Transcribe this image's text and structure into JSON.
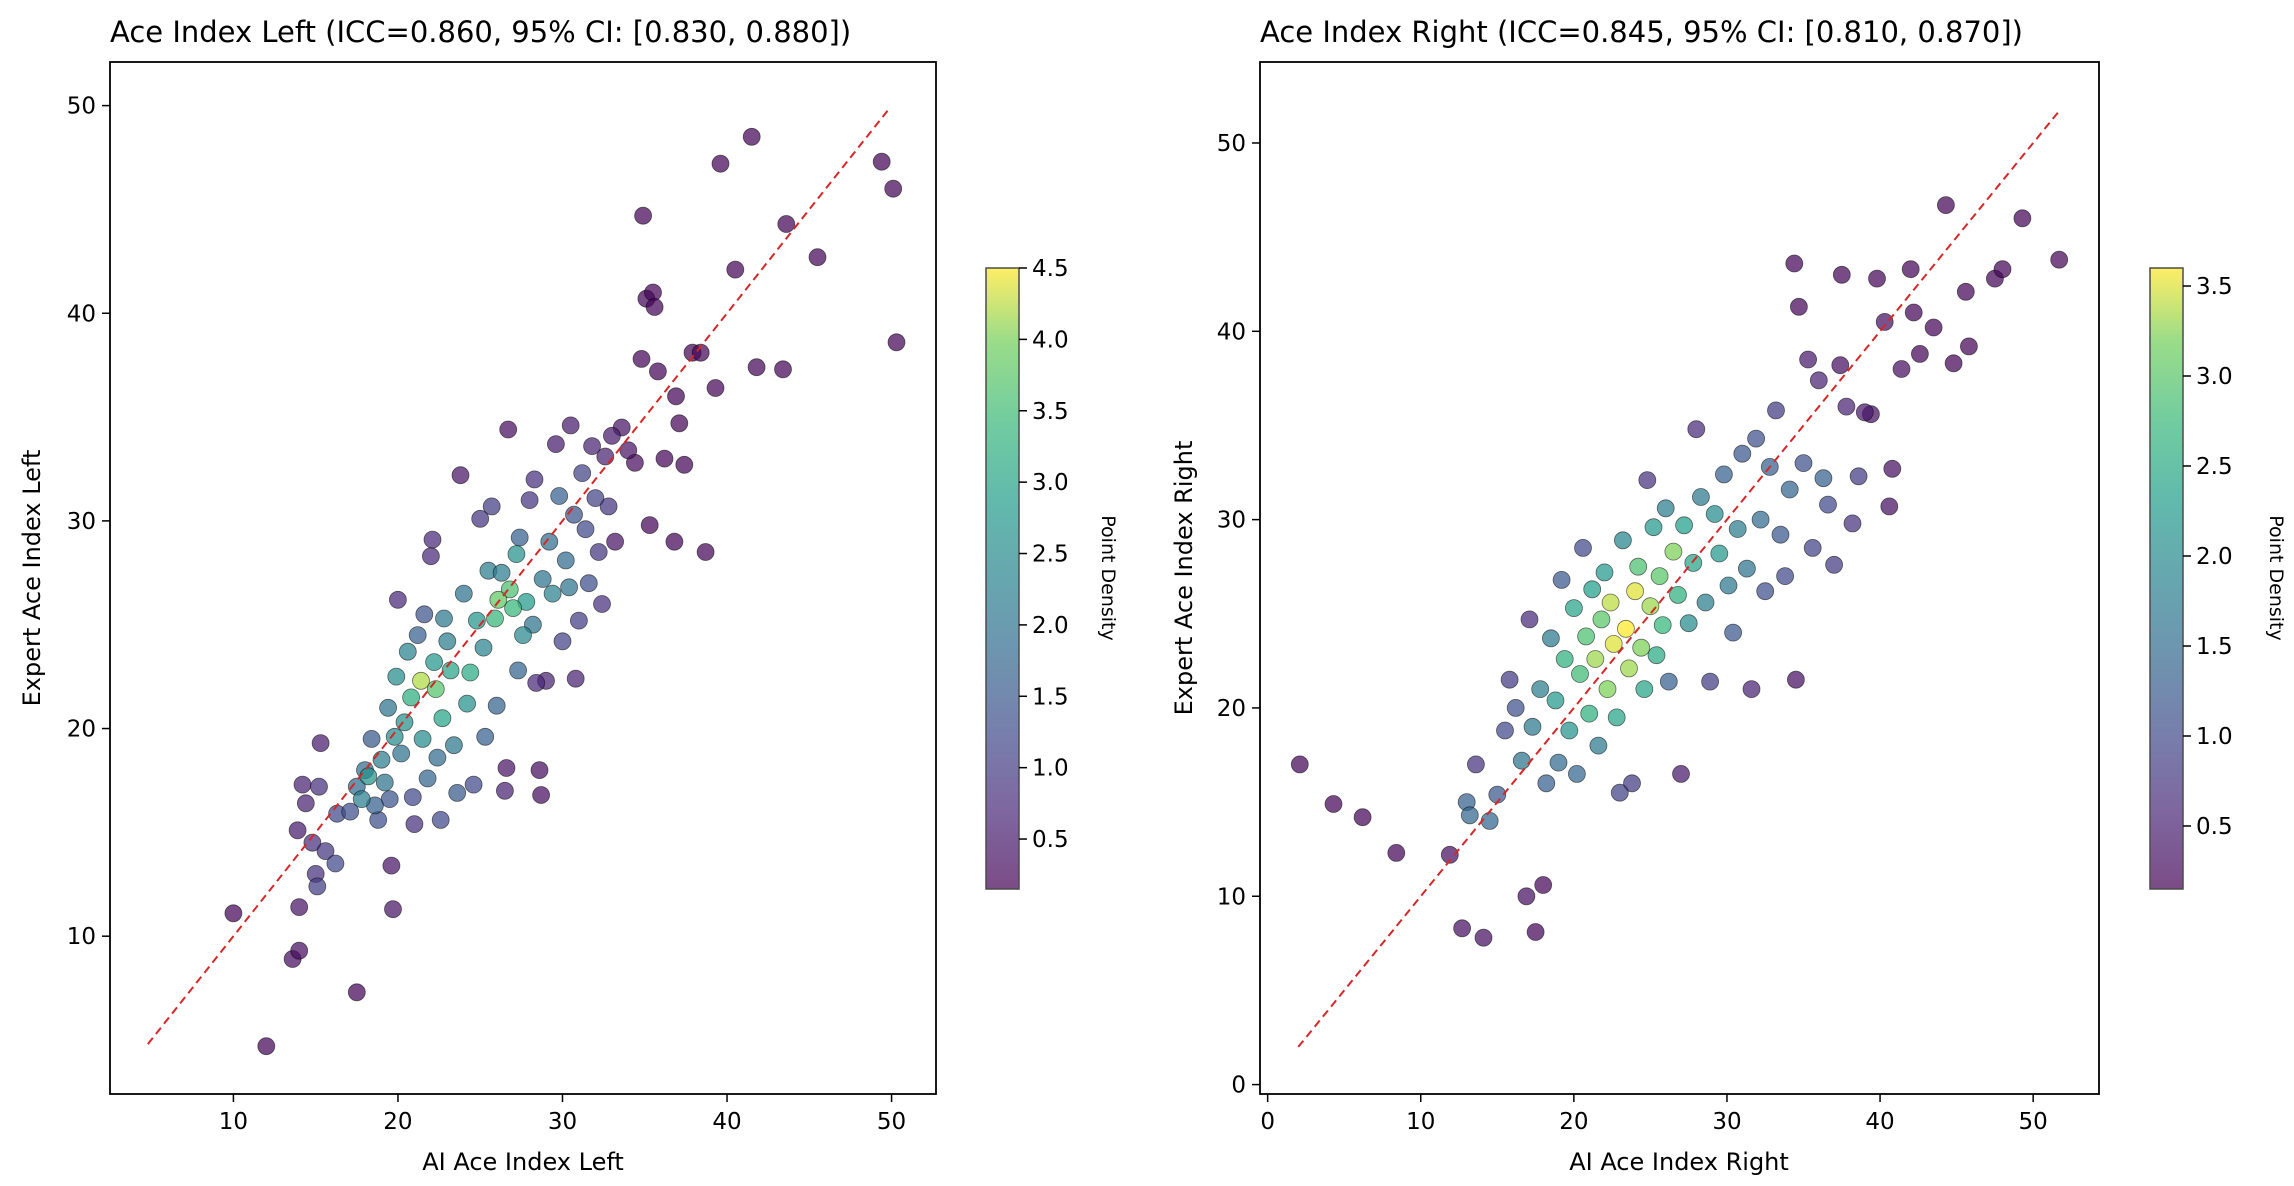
{
  "chart_data": [
    {
      "type": "scatter",
      "title": "Ace Index Left (ICC=0.860, 95% CI: [0.830, 0.880])",
      "xlabel": "AI Ace Index Left",
      "ylabel": "Expert Ace Index Left",
      "xlim": [
        2.5,
        52.7
      ],
      "ylim": [
        2.4,
        52.1
      ],
      "xticks": [
        10,
        20,
        30,
        40,
        50
      ],
      "yticks": [
        10,
        20,
        30,
        40,
        50
      ],
      "identity_line": [
        4.8,
        49.8
      ],
      "colorbar": {
        "label": "Point Density",
        "range": [
          0.15,
          4.5
        ],
        "ticks": [
          0.5,
          1.0,
          1.5,
          2.0,
          2.5,
          3.0,
          3.5,
          4.0,
          4.5
        ]
      },
      "points": [
        [
          10.0,
          11.1,
          0.2
        ],
        [
          12.0,
          4.7,
          0.2
        ],
        [
          13.6,
          8.9,
          0.3
        ],
        [
          14.0,
          9.3,
          0.3
        ],
        [
          14.0,
          11.4,
          0.4
        ],
        [
          13.9,
          15.1,
          0.5
        ],
        [
          14.2,
          17.3,
          0.6
        ],
        [
          14.4,
          16.4,
          0.6
        ],
        [
          14.8,
          14.5,
          0.8
        ],
        [
          15.0,
          13.0,
          0.8
        ],
        [
          15.1,
          12.4,
          1.0
        ],
        [
          15.2,
          17.2,
          0.8
        ],
        [
          15.3,
          19.3,
          0.5
        ],
        [
          15.6,
          14.1,
          0.9
        ],
        [
          16.2,
          13.5,
          1.2
        ],
        [
          16.3,
          15.9,
          1.2
        ],
        [
          17.1,
          16.0,
          1.3
        ],
        [
          17.5,
          7.3,
          0.2
        ],
        [
          17.5,
          17.2,
          1.8
        ],
        [
          17.8,
          16.6,
          2.2
        ],
        [
          18.0,
          18.0,
          1.9
        ],
        [
          18.2,
          17.7,
          2.6
        ],
        [
          18.4,
          19.5,
          1.5
        ],
        [
          18.6,
          16.3,
          1.6
        ],
        [
          18.8,
          15.6,
          1.3
        ],
        [
          19.0,
          18.5,
          2.2
        ],
        [
          19.2,
          17.4,
          2.0
        ],
        [
          19.4,
          21.0,
          2.0
        ],
        [
          19.5,
          16.6,
          1.4
        ],
        [
          19.6,
          13.4,
          0.4
        ],
        [
          19.7,
          11.3,
          0.4
        ],
        [
          19.8,
          19.6,
          2.5
        ],
        [
          19.9,
          22.5,
          2.5
        ],
        [
          20.0,
          26.2,
          0.7
        ],
        [
          20.2,
          18.8,
          2.0
        ],
        [
          20.4,
          20.3,
          2.6
        ],
        [
          20.6,
          23.7,
          2.3
        ],
        [
          20.8,
          21.5,
          3.2
        ],
        [
          20.9,
          16.7,
          1.2
        ],
        [
          21.0,
          15.4,
          0.8
        ],
        [
          21.2,
          24.5,
          1.6
        ],
        [
          21.4,
          22.3,
          4.2
        ],
        [
          21.5,
          19.5,
          2.5
        ],
        [
          21.6,
          25.5,
          1.4
        ],
        [
          21.8,
          17.6,
          1.7
        ],
        [
          22.0,
          28.3,
          0.7
        ],
        [
          22.1,
          29.1,
          0.7
        ],
        [
          22.2,
          23.2,
          2.7
        ],
        [
          22.3,
          21.9,
          3.7
        ],
        [
          22.4,
          18.6,
          1.8
        ],
        [
          22.6,
          15.6,
          1.2
        ],
        [
          22.7,
          20.5,
          3.0
        ],
        [
          22.8,
          25.3,
          2.1
        ],
        [
          23.0,
          24.2,
          2.2
        ],
        [
          23.2,
          22.8,
          3.0
        ],
        [
          23.4,
          19.2,
          2.1
        ],
        [
          23.6,
          16.9,
          1.5
        ],
        [
          23.8,
          32.2,
          0.4
        ],
        [
          24.0,
          26.5,
          2.0
        ],
        [
          24.2,
          21.2,
          2.6
        ],
        [
          24.4,
          22.7,
          3.1
        ],
        [
          24.6,
          17.3,
          1.2
        ],
        [
          24.8,
          25.2,
          2.7
        ],
        [
          25.0,
          30.1,
          0.9
        ],
        [
          25.2,
          23.9,
          2.3
        ],
        [
          25.3,
          19.6,
          1.6
        ],
        [
          25.5,
          27.6,
          2.2
        ],
        [
          25.7,
          30.7,
          1.0
        ],
        [
          25.9,
          25.3,
          3.4
        ],
        [
          26.0,
          21.1,
          1.7
        ],
        [
          26.1,
          26.2,
          3.8
        ],
        [
          26.3,
          27.5,
          2.2
        ],
        [
          26.5,
          17.0,
          0.6
        ],
        [
          26.6,
          18.1,
          0.4
        ],
        [
          26.7,
          34.4,
          0.3
        ],
        [
          26.8,
          26.7,
          3.6
        ],
        [
          27.0,
          25.8,
          3.4
        ],
        [
          27.2,
          28.4,
          2.6
        ],
        [
          27.3,
          22.8,
          1.7
        ],
        [
          27.4,
          29.2,
          1.6
        ],
        [
          27.6,
          24.5,
          2.4
        ],
        [
          27.8,
          26.1,
          2.8
        ],
        [
          28.0,
          31.0,
          0.9
        ],
        [
          28.2,
          25.0,
          2.0
        ],
        [
          28.3,
          32.0,
          0.8
        ],
        [
          28.4,
          22.2,
          0.7
        ],
        [
          28.6,
          18.0,
          0.3
        ],
        [
          28.7,
          16.8,
          0.3
        ],
        [
          28.8,
          27.2,
          2.0
        ],
        [
          29.0,
          22.3,
          0.6
        ],
        [
          29.2,
          29.0,
          1.9
        ],
        [
          29.4,
          26.5,
          2.3
        ],
        [
          29.6,
          33.7,
          0.5
        ],
        [
          29.8,
          31.2,
          1.6
        ],
        [
          30.0,
          24.2,
          1.1
        ],
        [
          30.2,
          28.1,
          1.8
        ],
        [
          30.4,
          26.8,
          2.0
        ],
        [
          30.5,
          34.6,
          0.5
        ],
        [
          30.7,
          30.3,
          1.4
        ],
        [
          30.8,
          22.4,
          0.6
        ],
        [
          31.0,
          25.2,
          1.0
        ],
        [
          31.2,
          32.3,
          1.1
        ],
        [
          31.4,
          29.6,
          1.2
        ],
        [
          31.6,
          27.0,
          1.3
        ],
        [
          31.8,
          33.6,
          0.6
        ],
        [
          32.0,
          31.1,
          1.1
        ],
        [
          32.2,
          28.5,
          0.9
        ],
        [
          32.4,
          26.0,
          0.8
        ],
        [
          32.6,
          33.1,
          0.6
        ],
        [
          32.8,
          30.7,
          0.9
        ],
        [
          33.0,
          34.1,
          0.5
        ],
        [
          33.2,
          29.0,
          0.4
        ],
        [
          33.6,
          34.5,
          0.4
        ],
        [
          34.0,
          33.4,
          0.4
        ],
        [
          34.4,
          32.8,
          0.3
        ],
        [
          34.8,
          37.8,
          0.2
        ],
        [
          34.9,
          44.7,
          0.2
        ],
        [
          35.1,
          40.7,
          0.2
        ],
        [
          35.3,
          29.8,
          0.2
        ],
        [
          35.5,
          41.0,
          0.2
        ],
        [
          35.6,
          40.3,
          0.2
        ],
        [
          35.8,
          37.2,
          0.2
        ],
        [
          36.2,
          33.0,
          0.2
        ],
        [
          36.8,
          29.0,
          0.2
        ],
        [
          36.9,
          36.0,
          0.2
        ],
        [
          37.1,
          34.7,
          0.2
        ],
        [
          37.4,
          32.7,
          0.2
        ],
        [
          37.9,
          38.1,
          0.2
        ],
        [
          38.4,
          38.1,
          0.2
        ],
        [
          38.7,
          28.5,
          0.2
        ],
        [
          39.3,
          36.4,
          0.2
        ],
        [
          39.6,
          47.2,
          0.2
        ],
        [
          40.5,
          42.1,
          0.2
        ],
        [
          41.5,
          48.5,
          0.2
        ],
        [
          41.8,
          37.4,
          0.2
        ],
        [
          43.4,
          37.3,
          0.2
        ],
        [
          43.6,
          44.3,
          0.2
        ],
        [
          45.5,
          42.7,
          0.2
        ],
        [
          49.4,
          47.3,
          0.2
        ],
        [
          50.1,
          46.0,
          0.2
        ],
        [
          50.3,
          38.6,
          0.2
        ]
      ]
    },
    {
      "type": "scatter",
      "title": "Ace Index Right (ICC=0.845, 95% CI: [0.810, 0.870])",
      "xlabel": "AI Ace Index Right",
      "ylabel": "Expert Ace Index Right",
      "xlim": [
        -0.5,
        54.3
      ],
      "ylim": [
        -0.5,
        54.3
      ],
      "xticks": [
        0,
        10,
        20,
        30,
        40,
        50
      ],
      "yticks": [
        0,
        10,
        20,
        30,
        40,
        50
      ],
      "identity_line": [
        2.0,
        51.8
      ],
      "colorbar": {
        "label": "Point Density",
        "range": [
          0.15,
          3.6
        ],
        "ticks": [
          0.5,
          1.0,
          1.5,
          2.0,
          2.5,
          3.0,
          3.5
        ]
      },
      "points": [
        [
          2.1,
          17.0,
          0.2
        ],
        [
          4.3,
          14.9,
          0.2
        ],
        [
          6.2,
          14.2,
          0.2
        ],
        [
          8.4,
          12.3,
          0.2
        ],
        [
          11.9,
          12.2,
          0.3
        ],
        [
          12.7,
          8.3,
          0.3
        ],
        [
          13.0,
          15.0,
          1.3
        ],
        [
          13.2,
          14.3,
          1.4
        ],
        [
          13.6,
          17.0,
          0.7
        ],
        [
          14.1,
          7.8,
          0.3
        ],
        [
          14.5,
          14.0,
          1.4
        ],
        [
          15.0,
          15.4,
          1.2
        ],
        [
          15.5,
          18.8,
          1.0
        ],
        [
          15.8,
          21.5,
          0.8
        ],
        [
          16.2,
          20.0,
          1.1
        ],
        [
          16.6,
          17.2,
          1.6
        ],
        [
          16.9,
          10.0,
          0.3
        ],
        [
          17.1,
          24.7,
          0.6
        ],
        [
          17.3,
          19.0,
          1.7
        ],
        [
          17.5,
          8.1,
          0.2
        ],
        [
          17.8,
          21.0,
          1.8
        ],
        [
          18.0,
          10.6,
          0.2
        ],
        [
          18.2,
          16.0,
          1.3
        ],
        [
          18.5,
          23.7,
          1.7
        ],
        [
          18.8,
          20.4,
          2.2
        ],
        [
          19.0,
          17.1,
          1.5
        ],
        [
          19.2,
          26.8,
          1.2
        ],
        [
          19.4,
          22.6,
          2.6
        ],
        [
          19.7,
          18.8,
          2.1
        ],
        [
          20.0,
          25.3,
          2.4
        ],
        [
          20.2,
          16.5,
          1.4
        ],
        [
          20.4,
          21.8,
          2.8
        ],
        [
          20.6,
          28.5,
          1.0
        ],
        [
          20.8,
          23.8,
          2.9
        ],
        [
          21.0,
          19.7,
          2.6
        ],
        [
          21.2,
          26.3,
          2.3
        ],
        [
          21.4,
          22.6,
          3.3
        ],
        [
          21.6,
          18.0,
          1.7
        ],
        [
          21.8,
          24.7,
          3.0
        ],
        [
          22.0,
          27.2,
          2.2
        ],
        [
          22.2,
          21.0,
          3.2
        ],
        [
          22.4,
          25.6,
          3.4
        ],
        [
          22.6,
          23.4,
          3.5
        ],
        [
          22.8,
          19.5,
          2.4
        ],
        [
          23.0,
          15.5,
          0.9
        ],
        [
          23.2,
          28.9,
          1.9
        ],
        [
          23.4,
          24.2,
          3.6
        ],
        [
          23.6,
          22.1,
          3.3
        ],
        [
          23.8,
          16.0,
          0.8
        ],
        [
          24.0,
          26.2,
          3.5
        ],
        [
          24.2,
          27.5,
          2.9
        ],
        [
          24.4,
          23.2,
          3.2
        ],
        [
          24.6,
          21.0,
          2.4
        ],
        [
          24.8,
          32.1,
          0.7
        ],
        [
          25.0,
          25.4,
          3.3
        ],
        [
          25.2,
          29.6,
          2.2
        ],
        [
          25.4,
          22.8,
          2.5
        ],
        [
          25.6,
          27.0,
          3.0
        ],
        [
          25.8,
          24.4,
          2.7
        ],
        [
          26.0,
          30.6,
          1.8
        ],
        [
          26.2,
          21.4,
          1.3
        ],
        [
          26.5,
          28.3,
          3.2
        ],
        [
          26.8,
          26.0,
          2.6
        ],
        [
          27.0,
          16.5,
          0.4
        ],
        [
          27.2,
          29.7,
          2.3
        ],
        [
          27.5,
          24.5,
          2.0
        ],
        [
          27.8,
          27.7,
          2.4
        ],
        [
          28.0,
          34.8,
          0.6
        ],
        [
          28.3,
          31.2,
          1.7
        ],
        [
          28.6,
          25.6,
          1.8
        ],
        [
          28.9,
          21.4,
          0.8
        ],
        [
          29.2,
          30.3,
          2.0
        ],
        [
          29.5,
          28.2,
          2.2
        ],
        [
          29.8,
          32.4,
          1.3
        ],
        [
          30.1,
          26.5,
          1.7
        ],
        [
          30.4,
          24.0,
          1.2
        ],
        [
          30.7,
          29.5,
          1.8
        ],
        [
          31.0,
          33.5,
          1.2
        ],
        [
          31.3,
          27.4,
          1.6
        ],
        [
          31.6,
          21.0,
          0.5
        ],
        [
          31.9,
          34.3,
          1.1
        ],
        [
          32.2,
          30.0,
          1.5
        ],
        [
          32.5,
          26.2,
          1.1
        ],
        [
          32.8,
          32.8,
          1.3
        ],
        [
          33.2,
          35.8,
          0.8
        ],
        [
          33.5,
          29.2,
          1.2
        ],
        [
          33.8,
          27.0,
          1.0
        ],
        [
          34.1,
          31.6,
          1.4
        ],
        [
          34.4,
          43.6,
          0.2
        ],
        [
          34.5,
          21.5,
          0.3
        ],
        [
          34.7,
          41.3,
          0.2
        ],
        [
          35.0,
          33.0,
          1.1
        ],
        [
          35.3,
          38.5,
          0.4
        ],
        [
          35.6,
          28.5,
          0.9
        ],
        [
          36.0,
          37.4,
          0.5
        ],
        [
          36.3,
          32.2,
          1.3
        ],
        [
          36.6,
          30.8,
          1.0
        ],
        [
          37.0,
          27.6,
          0.8
        ],
        [
          37.4,
          38.2,
          0.3
        ],
        [
          37.5,
          43.0,
          0.2
        ],
        [
          37.8,
          36.0,
          0.5
        ],
        [
          38.2,
          29.8,
          0.7
        ],
        [
          38.6,
          32.3,
          0.8
        ],
        [
          39.0,
          35.7,
          0.4
        ],
        [
          39.4,
          35.6,
          0.3
        ],
        [
          39.8,
          42.8,
          0.2
        ],
        [
          40.3,
          40.5,
          0.3
        ],
        [
          40.6,
          30.7,
          0.3
        ],
        [
          40.8,
          32.7,
          0.3
        ],
        [
          41.4,
          38.0,
          0.3
        ],
        [
          42.0,
          43.3,
          0.2
        ],
        [
          42.2,
          41.0,
          0.2
        ],
        [
          42.6,
          38.8,
          0.2
        ],
        [
          43.5,
          40.2,
          0.2
        ],
        [
          44.3,
          46.7,
          0.2
        ],
        [
          44.8,
          38.3,
          0.2
        ],
        [
          45.6,
          42.1,
          0.2
        ],
        [
          45.8,
          39.2,
          0.2
        ],
        [
          47.5,
          42.8,
          0.2
        ],
        [
          48.0,
          43.3,
          0.2
        ],
        [
          49.3,
          46.0,
          0.2
        ],
        [
          51.7,
          43.8,
          0.2
        ]
      ]
    }
  ]
}
